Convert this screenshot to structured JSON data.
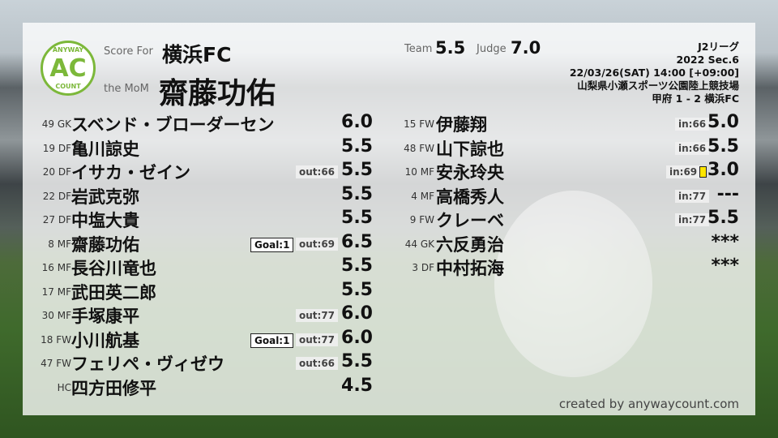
{
  "header": {
    "score_for_label": "Score For",
    "team": "横浜FC",
    "mom_label": "the MoM",
    "mom": "齋藤功佑",
    "team_label": "Team",
    "team_score": "5.5",
    "judge_label": "Judge",
    "judge_score": "7.0"
  },
  "logo": {
    "top": "ANYWAY",
    "center": "AC",
    "bottom": "COUNT"
  },
  "match": {
    "league": "J2リーグ",
    "section": "2022 Sec.6",
    "datetime": "22/03/26(SAT) 14:00 [+09:00]",
    "venue": "山梨県小瀬スポーツ公園陸上競技場",
    "result": "甲府 1 - 2 横浜FC"
  },
  "starters": [
    {
      "np": "49 GK",
      "name": "スベンド・ブローダーセン",
      "goal": "",
      "sub": "",
      "score": "6.0"
    },
    {
      "np": "19 DF",
      "name": "亀川諒史",
      "goal": "",
      "sub": "",
      "score": "5.5"
    },
    {
      "np": "20 DF",
      "name": "イサカ・ゼイン",
      "goal": "",
      "sub": "out:66",
      "score": "5.5"
    },
    {
      "np": "22 DF",
      "name": "岩武克弥",
      "goal": "",
      "sub": "",
      "score": "5.5"
    },
    {
      "np": "27 DF",
      "name": "中塩大貴",
      "goal": "",
      "sub": "",
      "score": "5.5"
    },
    {
      "np": "8 MF",
      "name": "齋藤功佑",
      "goal": "Goal:1",
      "sub": "out:69",
      "score": "6.5"
    },
    {
      "np": "16 MF",
      "name": "長谷川竜也",
      "goal": "",
      "sub": "",
      "score": "5.5"
    },
    {
      "np": "17 MF",
      "name": "武田英二郎",
      "goal": "",
      "sub": "",
      "score": "5.5"
    },
    {
      "np": "30 MF",
      "name": "手塚康平",
      "goal": "",
      "sub": "out:77",
      "score": "6.0"
    },
    {
      "np": "18 FW",
      "name": "小川航基",
      "goal": "Goal:1",
      "sub": "out:77",
      "score": "6.0"
    },
    {
      "np": "47 FW",
      "name": "フェリペ・ヴィゼウ",
      "goal": "",
      "sub": "out:66",
      "score": "5.5"
    },
    {
      "np": "HC",
      "name": "四方田修平",
      "goal": "",
      "sub": "",
      "score": "4.5"
    }
  ],
  "subs": [
    {
      "np": "15 FW",
      "name": "伊藤翔",
      "sub": "in:66",
      "card": false,
      "score": "5.0"
    },
    {
      "np": "48 FW",
      "name": "山下諒也",
      "sub": "in:66",
      "card": false,
      "score": "5.5"
    },
    {
      "np": "10 MF",
      "name": "安永玲央",
      "sub": "in:69",
      "card": true,
      "score": "3.0"
    },
    {
      "np": "4 MF",
      "name": "高橋秀人",
      "sub": "in:77",
      "card": false,
      "score": "---"
    },
    {
      "np": "9 FW",
      "name": "クレーベ",
      "sub": "in:77",
      "card": false,
      "score": "5.5"
    },
    {
      "np": "44 GK",
      "name": "六反勇治",
      "sub": "",
      "card": false,
      "score": "***"
    },
    {
      "np": "3 DF",
      "name": "中村拓海",
      "sub": "",
      "card": false,
      "score": "***"
    }
  ],
  "colors": {
    "logo_green": "#7cb83a",
    "yellow_card": "#ffe600"
  },
  "footer": {
    "credit": "created by anywaycount.com"
  }
}
